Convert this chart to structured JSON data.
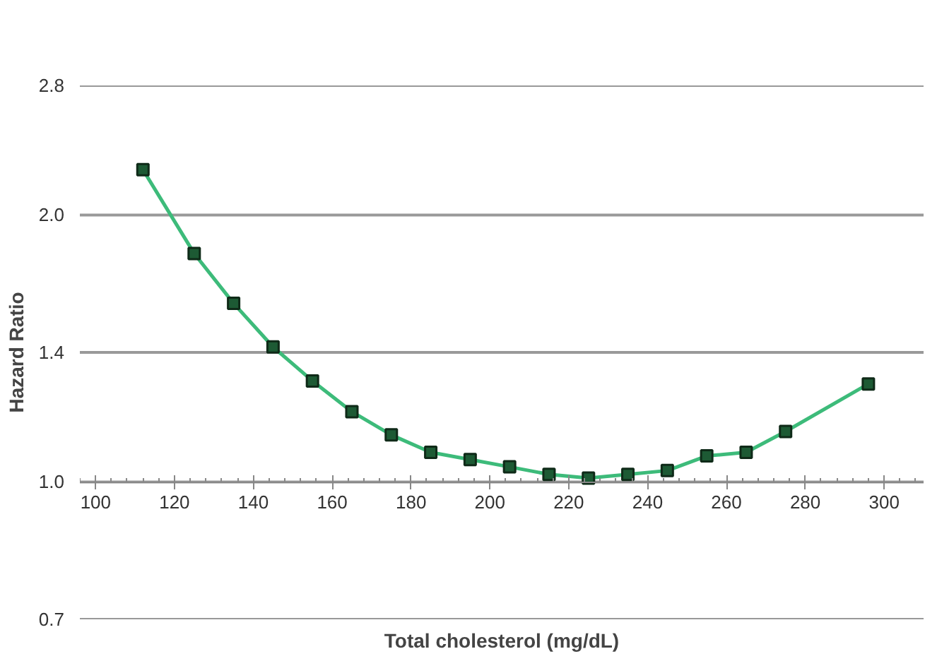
{
  "chart_data": {
    "type": "line",
    "xlabel": "Total cholesterol (mg/dL)",
    "ylabel": "Hazard Ratio",
    "x": [
      112,
      125,
      135,
      145,
      155,
      165,
      175,
      185,
      195,
      205,
      215,
      225,
      235,
      245,
      255,
      265,
      275,
      296
    ],
    "series": [
      {
        "color": "#3dbb7a",
        "values": [
          2.25,
          1.81,
          1.59,
          1.42,
          1.3,
          1.2,
          1.13,
          1.08,
          1.06,
          1.04,
          1.02,
          1.01,
          1.02,
          1.03,
          1.07,
          1.08,
          1.14,
          1.29
        ]
      }
    ],
    "log": "y",
    "xlim": [
      96,
      310
    ],
    "ylim": [
      0.7,
      2.8
    ],
    "xticks": [
      100,
      120,
      140,
      160,
      180,
      200,
      220,
      240,
      260,
      280,
      300
    ],
    "yticks": [
      0.7,
      {
        "value": 1,
        "label": "1.0"
      },
      1.4,
      {
        "value": 2,
        "label": "2.0"
      },
      2.8
    ],
    "grid": "y",
    "marker": "square",
    "line_style": "solid"
  }
}
